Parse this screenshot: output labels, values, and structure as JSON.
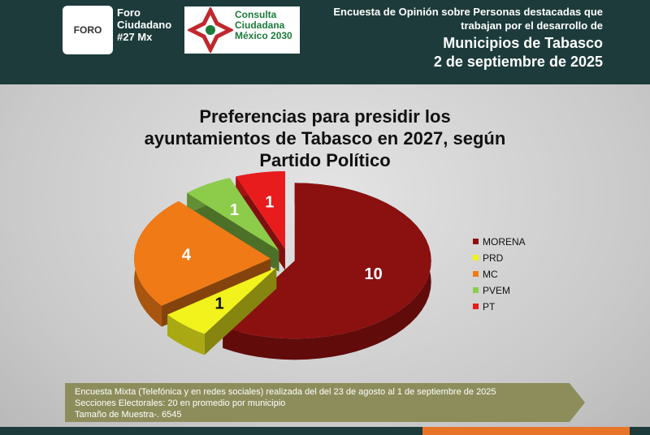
{
  "header": {
    "badge": "FORO",
    "logo1": "Foro Ciudadano #27 Mx",
    "logo2": "Consulta Ciudadana México 2030",
    "survey": "Encuesta de Opinión sobre Personas destacadas que trabajan por el desarrollo de",
    "region": "Municipios de Tabasco",
    "date": "2 de septiembre de 2025"
  },
  "chart_data": {
    "type": "pie",
    "title": "Preferencias para presidir los ayuntamientos de Tabasco en 2027, según Partido Político",
    "categories": [
      "MORENA",
      "PRD",
      "MC",
      "PVEM",
      "PT"
    ],
    "values": [
      10,
      1,
      4,
      1,
      1
    ],
    "colors": [
      "#8b1010",
      "#f2f21c",
      "#f07a16",
      "#8ccc4a",
      "#e81c1c"
    ],
    "legend": "right"
  },
  "footer": {
    "notes": [
      "Encuesta Mixta (Telefónica y en redes sociales) realizada del del 23 de agosto al 1 de septiembre de 2025",
      "Secciones Electorales: 20 en promedio por municipio",
      "Tamaño de Muestra-. 6545"
    ]
  }
}
